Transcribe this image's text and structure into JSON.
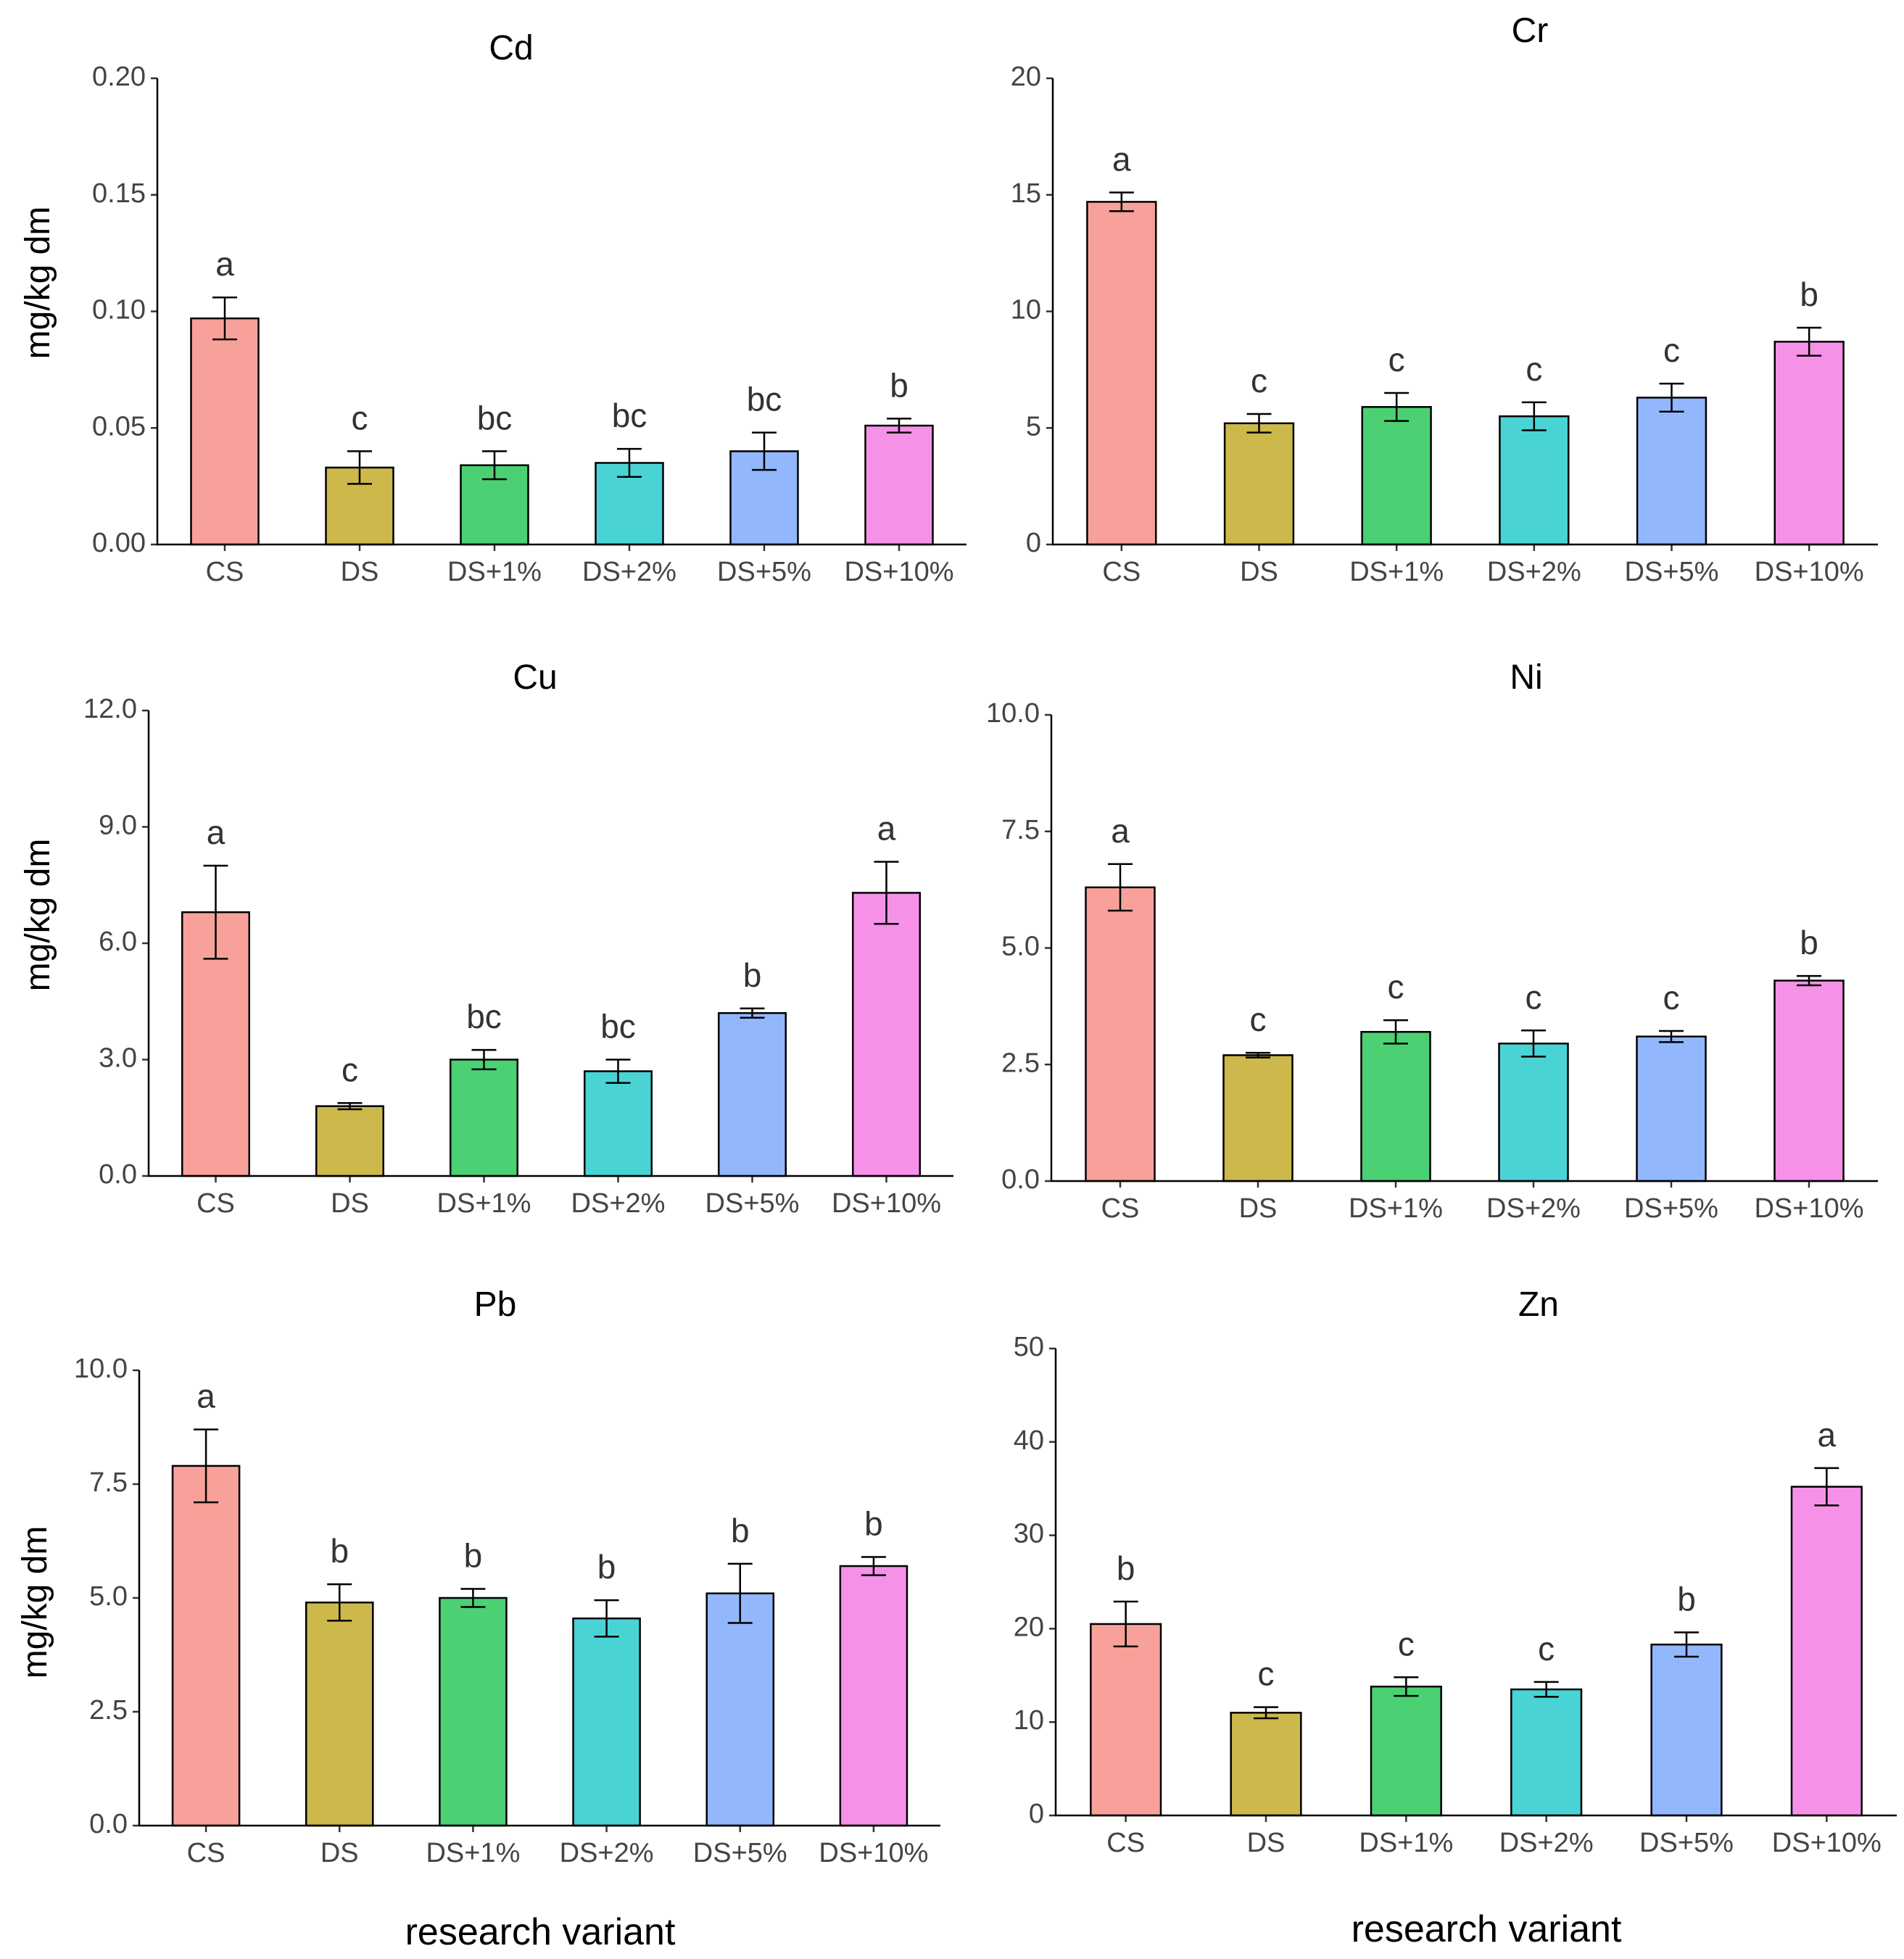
{
  "chart_data": [
    {
      "type": "bar",
      "title": "Cd",
      "ylabel": "mg/kg dm",
      "xlabel": "",
      "categories": [
        "CS",
        "DS",
        "DS+1%",
        "DS+2%",
        "DS+5%",
        "DS+10%"
      ],
      "values": [
        0.097,
        0.033,
        0.034,
        0.035,
        0.04,
        0.051
      ],
      "errors": [
        0.009,
        0.007,
        0.006,
        0.006,
        0.008,
        0.003
      ],
      "letters": [
        "a",
        "c",
        "bc",
        "bc",
        "bc",
        "b"
      ],
      "ylim": [
        0,
        0.2
      ],
      "yticks": [
        0,
        0.05,
        0.1,
        0.15,
        0.2
      ],
      "ytick_labels": [
        "0.00",
        "0.05",
        "0.10",
        "0.15",
        "0.20"
      ]
    },
    {
      "type": "bar",
      "title": "Cr",
      "ylabel": "",
      "xlabel": "",
      "categories": [
        "CS",
        "DS",
        "DS+1%",
        "DS+2%",
        "DS+5%",
        "DS+10%"
      ],
      "values": [
        14.7,
        5.2,
        5.9,
        5.5,
        6.3,
        8.7
      ],
      "errors": [
        0.4,
        0.4,
        0.6,
        0.6,
        0.6,
        0.6
      ],
      "letters": [
        "a",
        "c",
        "c",
        "c",
        "c",
        "b"
      ],
      "ylim": [
        0,
        20
      ],
      "yticks": [
        0,
        5,
        10,
        15,
        20
      ],
      "ytick_labels": [
        "0",
        "5",
        "10",
        "15",
        "20"
      ]
    },
    {
      "type": "bar",
      "title": "Cu",
      "ylabel": "mg/kg dm",
      "xlabel": "",
      "categories": [
        "CS",
        "DS",
        "DS+1%",
        "DS+2%",
        "DS+5%",
        "DS+10%"
      ],
      "values": [
        6.8,
        1.8,
        3.0,
        2.7,
        4.2,
        7.3
      ],
      "errors": [
        1.2,
        0.08,
        0.25,
        0.3,
        0.12,
        0.8
      ],
      "letters": [
        "a",
        "c",
        "bc",
        "bc",
        "b",
        "a"
      ],
      "ylim": [
        0,
        12
      ],
      "yticks": [
        0,
        3,
        6,
        9,
        12
      ],
      "ytick_labels": [
        "0.0",
        "3.0",
        "6.0",
        "9.0",
        "12.0"
      ]
    },
    {
      "type": "bar",
      "title": "Ni",
      "ylabel": "",
      "xlabel": "",
      "categories": [
        "CS",
        "DS",
        "DS+1%",
        "DS+2%",
        "DS+5%",
        "DS+10%"
      ],
      "values": [
        6.3,
        2.7,
        3.2,
        2.95,
        3.1,
        4.3
      ],
      "errors": [
        0.5,
        0.05,
        0.25,
        0.28,
        0.12,
        0.1
      ],
      "letters": [
        "a",
        "c",
        "c",
        "c",
        "c",
        "b"
      ],
      "ylim": [
        0,
        10
      ],
      "yticks": [
        0,
        2.5,
        5,
        7.5,
        10
      ],
      "ytick_labels": [
        "0.0",
        "2.5",
        "5.0",
        "7.5",
        "10.0"
      ]
    },
    {
      "type": "bar",
      "title": "Pb",
      "ylabel": "mg/kg dm",
      "xlabel": "research variant",
      "categories": [
        "CS",
        "DS",
        "DS+1%",
        "DS+2%",
        "DS+5%",
        "DS+10%"
      ],
      "values": [
        7.9,
        4.9,
        5.0,
        4.55,
        5.1,
        5.7
      ],
      "errors": [
        0.8,
        0.4,
        0.2,
        0.4,
        0.65,
        0.2
      ],
      "letters": [
        "a",
        "b",
        "b",
        "b",
        "b",
        "b"
      ],
      "ylim": [
        0,
        10
      ],
      "yticks": [
        0,
        2.5,
        5,
        7.5,
        10
      ],
      "ytick_labels": [
        "0.0",
        "2.5",
        "5.0",
        "7.5",
        "10.0"
      ]
    },
    {
      "type": "bar",
      "title": "Zn",
      "ylabel": "",
      "xlabel": "research variant",
      "categories": [
        "CS",
        "DS",
        "DS+1%",
        "DS+2%",
        "DS+5%",
        "DS+10%"
      ],
      "values": [
        20.5,
        11.0,
        13.8,
        13.5,
        18.3,
        35.2
      ],
      "errors": [
        2.4,
        0.6,
        1.0,
        0.8,
        1.3,
        2.0
      ],
      "letters": [
        "b",
        "c",
        "c",
        "c",
        "b",
        "a"
      ],
      "ylim": [
        0,
        50
      ],
      "yticks": [
        0,
        10,
        20,
        30,
        40,
        50
      ],
      "ytick_labels": [
        "0",
        "10",
        "20",
        "30",
        "40",
        "50"
      ]
    }
  ],
  "colors": {
    "bars": [
      "#F8A19A",
      "#CDB84C",
      "#4CD074",
      "#4AD3D5",
      "#93B7FC",
      "#F592E8"
    ],
    "axis": "#000000",
    "tick_text": "#444444"
  }
}
